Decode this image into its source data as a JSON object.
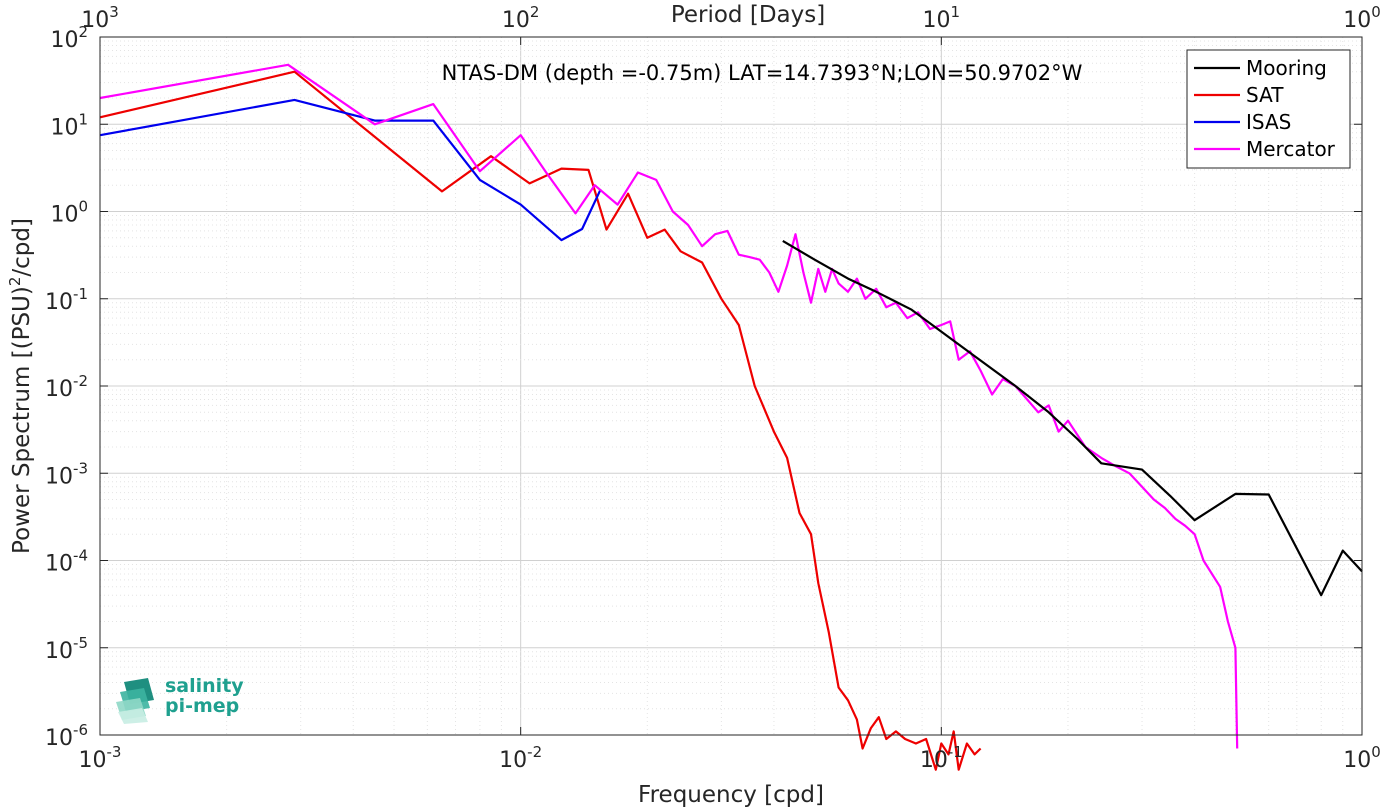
{
  "chart_data": {
    "type": "line",
    "title": "NTAS-DM (depth =-0.75m) LAT=14.7393°N;LON=50.9702°W",
    "xlabel": "Frequency [cpd]",
    "ylabel": "Power Spectrum [(PSU)",
    "ylabel_sup": "2",
    "ylabel_tail": "/cpd]",
    "top_xlabel": "Period [Days]",
    "xscale": "log",
    "yscale": "log",
    "xlim": [
      0.001,
      1
    ],
    "ylim": [
      1e-06,
      100
    ],
    "grid": true,
    "minor_grid": true,
    "legend_position": "top-right",
    "x_ticks": [
      {
        "base": "10",
        "exp": "-3"
      },
      {
        "base": "10",
        "exp": "-2"
      },
      {
        "base": "10",
        "exp": "-1"
      },
      {
        "base": "10",
        "exp": "0"
      }
    ],
    "top_ticks": [
      {
        "base": "10",
        "exp": "3"
      },
      {
        "base": "10",
        "exp": "2"
      },
      {
        "base": "10",
        "exp": "1"
      },
      {
        "base": "10",
        "exp": "0"
      }
    ],
    "y_ticks": [
      {
        "base": "10",
        "exp": "-6"
      },
      {
        "base": "10",
        "exp": "-5"
      },
      {
        "base": "10",
        "exp": "-4"
      },
      {
        "base": "10",
        "exp": "-3"
      },
      {
        "base": "10",
        "exp": "-2"
      },
      {
        "base": "10",
        "exp": "-1"
      },
      {
        "base": "10",
        "exp": "0"
      },
      {
        "base": "10",
        "exp": "1"
      },
      {
        "base": "10",
        "exp": "2"
      }
    ],
    "series": [
      {
        "name": "Mooring",
        "color": "#000000",
        "points": [
          [
            0.042,
            0.46
          ],
          [
            0.05,
            0.28
          ],
          [
            0.06,
            0.17
          ],
          [
            0.07,
            0.12
          ],
          [
            0.085,
            0.075
          ],
          [
            0.1,
            0.042
          ],
          [
            0.12,
            0.022
          ],
          [
            0.15,
            0.01
          ],
          [
            0.18,
            0.005
          ],
          [
            0.21,
            0.0025
          ],
          [
            0.24,
            0.0013
          ],
          [
            0.3,
            0.0011
          ],
          [
            0.35,
            0.00055
          ],
          [
            0.4,
            0.00029
          ],
          [
            0.5,
            0.00058
          ],
          [
            0.6,
            0.00057
          ],
          [
            0.8,
            4e-05
          ],
          [
            0.9,
            0.00013
          ],
          [
            1.0,
            7.5e-05
          ]
        ]
      },
      {
        "name": "SAT",
        "color": "#ee0000",
        "points": [
          [
            0.001,
            12
          ],
          [
            0.0029,
            40
          ],
          [
            0.0065,
            1.7
          ],
          [
            0.0085,
            4.3
          ],
          [
            0.0105,
            2.1
          ],
          [
            0.0125,
            3.1
          ],
          [
            0.0145,
            3.0
          ],
          [
            0.016,
            0.62
          ],
          [
            0.018,
            1.6
          ],
          [
            0.02,
            0.5
          ],
          [
            0.022,
            0.62
          ],
          [
            0.024,
            0.35
          ],
          [
            0.027,
            0.26
          ],
          [
            0.03,
            0.1
          ],
          [
            0.033,
            0.05
          ],
          [
            0.036,
            0.01
          ],
          [
            0.04,
            0.003
          ],
          [
            0.043,
            0.0015
          ],
          [
            0.046,
            0.00035
          ],
          [
            0.049,
            0.0002
          ],
          [
            0.051,
            5.5e-05
          ],
          [
            0.054,
            1.5e-05
          ],
          [
            0.057,
            3.5e-06
          ],
          [
            0.06,
            2.5e-06
          ],
          [
            0.063,
            1.5e-06
          ],
          [
            0.065,
            7e-07
          ],
          [
            0.068,
            1.2e-06
          ],
          [
            0.071,
            1.6e-06
          ],
          [
            0.074,
            9e-07
          ],
          [
            0.078,
            1.1e-06
          ],
          [
            0.082,
            9e-07
          ],
          [
            0.087,
            8e-07
          ],
          [
            0.092,
            9e-07
          ],
          [
            0.097,
            4e-07
          ],
          [
            0.1,
            8e-07
          ],
          [
            0.104,
            6e-07
          ],
          [
            0.107,
            1.1e-06
          ],
          [
            0.11,
            4e-07
          ],
          [
            0.115,
            8e-07
          ],
          [
            0.12,
            6e-07
          ],
          [
            0.124,
            7e-07
          ]
        ]
      },
      {
        "name": "ISAS",
        "color": "#0000ee",
        "points": [
          [
            0.001,
            7.5
          ],
          [
            0.0029,
            19
          ],
          [
            0.0045,
            11
          ],
          [
            0.0062,
            11
          ],
          [
            0.008,
            2.3
          ],
          [
            0.01,
            1.2
          ],
          [
            0.0125,
            0.47
          ],
          [
            0.014,
            0.63
          ],
          [
            0.0155,
            1.8
          ]
        ]
      },
      {
        "name": "Mercator",
        "color": "#ff00ff",
        "points": [
          [
            0.001,
            20
          ],
          [
            0.0028,
            48
          ],
          [
            0.0045,
            10
          ],
          [
            0.0062,
            17
          ],
          [
            0.008,
            2.9
          ],
          [
            0.01,
            7.5
          ],
          [
            0.0115,
            2.8
          ],
          [
            0.0135,
            0.95
          ],
          [
            0.015,
            2.0
          ],
          [
            0.017,
            1.2
          ],
          [
            0.019,
            2.8
          ],
          [
            0.021,
            2.3
          ],
          [
            0.023,
            1.0
          ],
          [
            0.025,
            0.7
          ],
          [
            0.027,
            0.4
          ],
          [
            0.029,
            0.55
          ],
          [
            0.031,
            0.6
          ],
          [
            0.033,
            0.32
          ],
          [
            0.035,
            0.3
          ],
          [
            0.037,
            0.28
          ],
          [
            0.039,
            0.2
          ],
          [
            0.041,
            0.12
          ],
          [
            0.043,
            0.24
          ],
          [
            0.045,
            0.55
          ],
          [
            0.047,
            0.2
          ],
          [
            0.049,
            0.09
          ],
          [
            0.051,
            0.22
          ],
          [
            0.053,
            0.12
          ],
          [
            0.055,
            0.22
          ],
          [
            0.057,
            0.15
          ],
          [
            0.06,
            0.12
          ],
          [
            0.063,
            0.17
          ],
          [
            0.066,
            0.1
          ],
          [
            0.07,
            0.13
          ],
          [
            0.074,
            0.08
          ],
          [
            0.078,
            0.09
          ],
          [
            0.083,
            0.06
          ],
          [
            0.088,
            0.07
          ],
          [
            0.094,
            0.045
          ],
          [
            0.1,
            0.05
          ],
          [
            0.105,
            0.055
          ],
          [
            0.11,
            0.02
          ],
          [
            0.117,
            0.025
          ],
          [
            0.124,
            0.015
          ],
          [
            0.132,
            0.008
          ],
          [
            0.14,
            0.012
          ],
          [
            0.15,
            0.01
          ],
          [
            0.16,
            0.007
          ],
          [
            0.17,
            0.005
          ],
          [
            0.18,
            0.006
          ],
          [
            0.19,
            0.003
          ],
          [
            0.2,
            0.004
          ],
          [
            0.22,
            0.002
          ],
          [
            0.24,
            0.0015
          ],
          [
            0.26,
            0.0012
          ],
          [
            0.28,
            0.001
          ],
          [
            0.3,
            0.0007
          ],
          [
            0.32,
            0.0005
          ],
          [
            0.34,
            0.0004
          ],
          [
            0.36,
            0.0003
          ],
          [
            0.38,
            0.00025
          ],
          [
            0.4,
            0.0002
          ],
          [
            0.42,
            0.0001
          ],
          [
            0.44,
            7e-05
          ],
          [
            0.46,
            5e-05
          ],
          [
            0.48,
            2e-05
          ],
          [
            0.5,
            1e-05
          ],
          [
            0.505,
            7e-07
          ]
        ]
      }
    ],
    "logo": {
      "line1": "salinity",
      "line2": "pi-mep"
    }
  }
}
